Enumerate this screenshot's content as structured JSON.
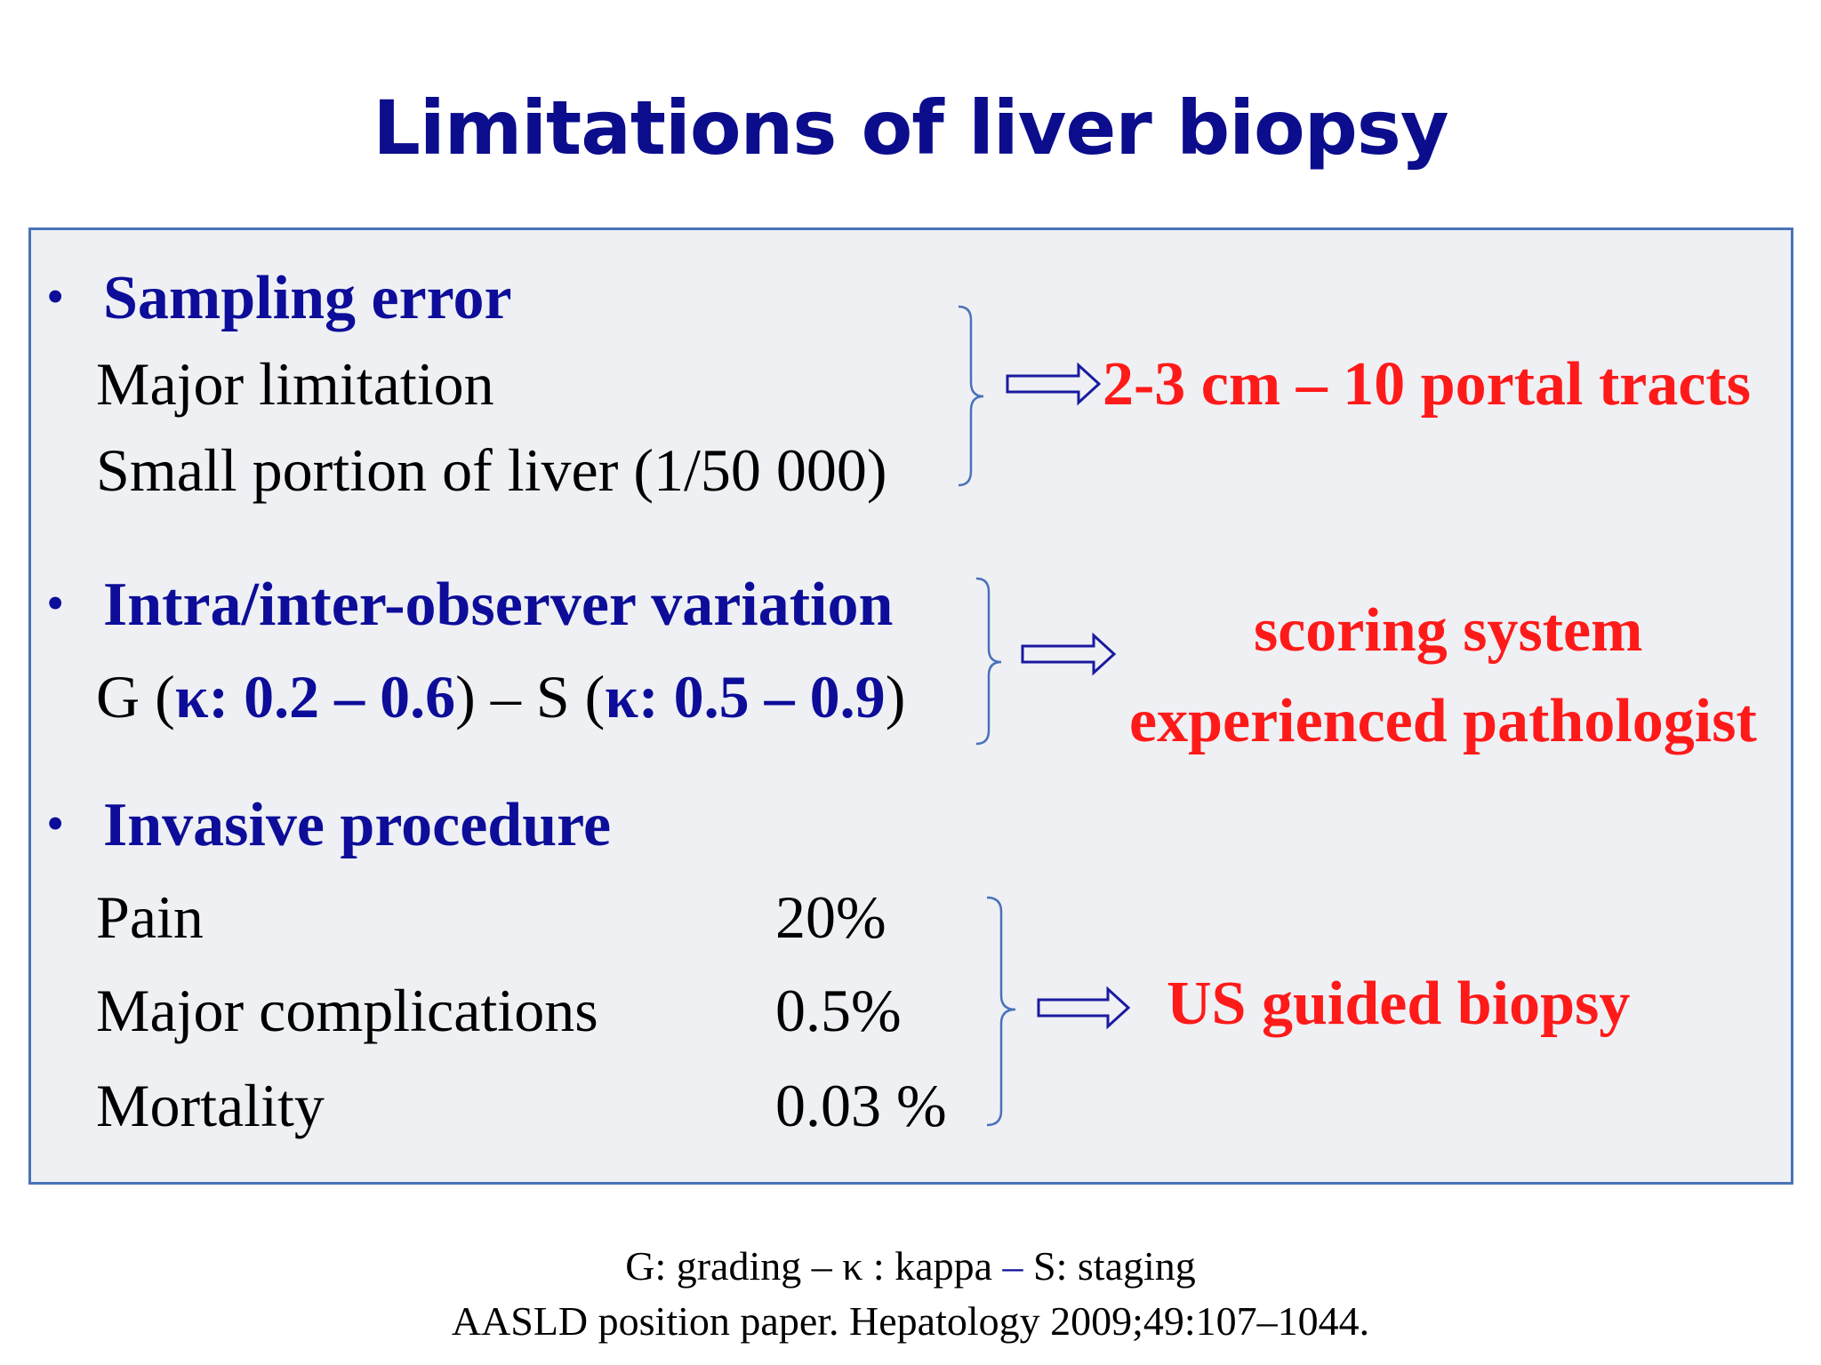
{
  "title": "Limitations of liver biopsy",
  "sections": [
    {
      "bullet": "•",
      "heading": "Sampling error",
      "lines": [
        "Major limitation",
        "Small portion of liver (1/50 000)"
      ],
      "result": [
        "2-3 cm – 10 portal tracts"
      ]
    },
    {
      "bullet": "•",
      "heading": "Intra/inter-observer variation",
      "kappa_line": {
        "g_prefix": "G (",
        "g_kappa": "κ: 0.2 – 0.6",
        "mid": ") – S (",
        "s_kappa": "κ: 0.5 – 0.9",
        "suffix": ")"
      },
      "result": [
        "scoring system",
        "experienced pathologist"
      ]
    },
    {
      "bullet": "•",
      "heading": "Invasive procedure",
      "rows": [
        {
          "label": "Pain",
          "value": "20%"
        },
        {
          "label": "Major complications",
          "value": "0.5%"
        },
        {
          "label": "Mortality",
          "value": "0.03 %"
        }
      ],
      "result": [
        "US guided biopsy"
      ]
    }
  ],
  "footer": {
    "legend": {
      "g": "G: grading –",
      "k": " κ : kappa ",
      "dash": "–",
      "s": " S: staging"
    },
    "reference": "AASLD position paper. Hepatology 2009;49:107–1044."
  },
  "colors": {
    "title": "#0b0d8c",
    "heading": "#0d0d99",
    "result": "#ff1a1a",
    "panel_fill": "#eef0f4",
    "panel_border": "#4a72b8",
    "arrow": "#1a1aa0",
    "brace": "#4a72b8"
  }
}
